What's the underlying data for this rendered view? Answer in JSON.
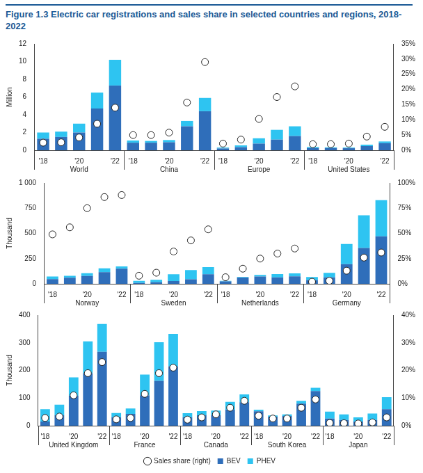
{
  "chart_data": [
    {
      "type": "bar",
      "title": "Figure 1.3  Electric car registrations and sales share in selected countries and regions, 2018-2022",
      "ylabel": "Million",
      "stacked": true,
      "grid": false,
      "groups": [
        "World",
        "China",
        "Europe",
        "United States"
      ],
      "categories": [
        "'18",
        null,
        "'20",
        null,
        "'22",
        "'18",
        null,
        "'20",
        null,
        "'22",
        "'18",
        null,
        "'20",
        null,
        "'22",
        "'18",
        null,
        "'20",
        null,
        "'22"
      ],
      "series": [
        {
          "name": "BEV",
          "color": "#2f6eba",
          "values": [
            1.3,
            1.5,
            2.0,
            4.7,
            7.3,
            0.85,
            0.85,
            0.9,
            2.7,
            4.4,
            0.2,
            0.35,
            0.75,
            1.2,
            1.6,
            0.25,
            0.25,
            0.23,
            0.47,
            0.8
          ]
        },
        {
          "name": "PHEV",
          "color": "#2ec4f1",
          "values": [
            0.7,
            0.6,
            1.0,
            1.8,
            2.9,
            0.25,
            0.2,
            0.25,
            0.6,
            1.5,
            0.1,
            0.2,
            0.6,
            1.1,
            1.1,
            0.12,
            0.08,
            0.07,
            0.16,
            0.19
          ]
        },
        {
          "name": "Sales share (right)",
          "type": "scatter",
          "axis": "y2",
          "marker": "circle",
          "color": "#ffffff",
          "values": [
            2.5,
            2.6,
            4.2,
            8.7,
            14,
            5,
            5,
            5.8,
            15.7,
            29,
            2.2,
            3.5,
            10.3,
            17.5,
            21,
            2,
            2,
            2.2,
            4.5,
            7.7
          ]
        }
      ],
      "ylim": [
        0,
        12
      ],
      "yticks": [
        0,
        2,
        4,
        6,
        8,
        10,
        12
      ],
      "y2lim": [
        0,
        35
      ],
      "y2ticks": [
        {
          "value": 0,
          "label": "0%"
        },
        {
          "value": 5,
          "label": "5%"
        },
        {
          "value": 10,
          "label": "10%"
        },
        {
          "value": 15,
          "label": "15%"
        },
        {
          "value": 20,
          "label": "20%"
        },
        {
          "value": 25,
          "label": "25%"
        },
        {
          "value": 30,
          "label": "30%"
        },
        {
          "value": 35,
          "label": "35%"
        }
      ]
    },
    {
      "type": "bar",
      "ylabel": "Thousand",
      "stacked": true,
      "grid": false,
      "groups": [
        "Norway",
        "Sweden",
        "Netherlands",
        "Germany"
      ],
      "categories": [
        "'18",
        null,
        "'20",
        null,
        "'22",
        "'18",
        null,
        "'20",
        null,
        "'22",
        "'18",
        null,
        "'20",
        null,
        "'22",
        "'18",
        null,
        "'20",
        null,
        "'22"
      ],
      "series": [
        {
          "name": "BEV",
          "color": "#2f6eba",
          "values": [
            46,
            60,
            77,
            115,
            150,
            8,
            16,
            28,
            45,
            95,
            25,
            62,
            73,
            64,
            75,
            36,
            63,
            195,
            355,
            470
          ]
        },
        {
          "name": "PHEV",
          "color": "#2ec4f1",
          "values": [
            27,
            20,
            28,
            38,
            22,
            22,
            24,
            66,
            92,
            70,
            5,
            5,
            15,
            32,
            28,
            32,
            46,
            200,
            325,
            360
          ]
        },
        {
          "name": "Sales share (right)",
          "type": "scatter",
          "axis": "y2",
          "marker": "circle",
          "color": "#ffffff",
          "values": [
            49,
            56,
            75,
            86,
            88,
            8,
            11,
            32,
            43,
            54,
            6.5,
            15,
            25,
            30,
            35,
            2,
            3,
            13,
            26,
            31
          ]
        }
      ],
      "ylim": [
        0,
        1000
      ],
      "yticks": [
        0,
        250,
        500,
        750,
        {
          "value": 1000,
          "label": "1 000"
        }
      ],
      "y2lim": [
        0,
        100
      ],
      "y2ticks": [
        {
          "value": 0,
          "label": "0%"
        },
        {
          "value": 25,
          "label": "25%"
        },
        {
          "value": 50,
          "label": "50%"
        },
        {
          "value": 75,
          "label": "75%"
        },
        {
          "value": 100,
          "label": "100%"
        }
      ]
    },
    {
      "type": "bar",
      "ylabel": "Thousand",
      "stacked": true,
      "grid": false,
      "legend": "bottom",
      "groups": [
        "United Kingdom",
        "France",
        "Canada",
        "South Korea",
        "Japan"
      ],
      "categories": [
        "'18",
        null,
        "'20",
        null,
        "'22",
        "'18",
        null,
        "'20",
        null,
        "'22",
        "'18",
        null,
        "'20",
        null,
        "'22",
        "'18",
        null,
        "'20",
        null,
        "'22",
        "'18",
        null,
        "'20",
        null,
        "'22"
      ],
      "series": [
        {
          "name": "BEV",
          "color": "#2f6eba",
          "values": [
            15,
            38,
            108,
            190,
            267,
            31,
            43,
            110,
            162,
            215,
            31,
            38,
            38,
            58,
            85,
            52,
            33,
            35,
            80,
            125,
            26,
            21,
            15,
            21,
            60
          ]
        },
        {
          "name": "PHEV",
          "color": "#2ec4f1",
          "values": [
            45,
            38,
            67,
            115,
            101,
            15,
            19,
            75,
            140,
            117,
            14,
            15,
            17,
            28,
            28,
            6,
            4,
            6,
            10,
            12,
            25,
            20,
            15,
            23,
            43
          ]
        },
        {
          "name": "Sales share (right)",
          "type": "scatter",
          "axis": "y2",
          "marker": "circle",
          "color": "#ffffff",
          "values": [
            2.8,
            3.3,
            11,
            19,
            23,
            2.3,
            2.8,
            11.5,
            19,
            21,
            2.2,
            3,
            4.1,
            6.5,
            9,
            3.6,
            2.6,
            2.6,
            6.5,
            9.5,
            1,
            0.9,
            0.8,
            1.2,
            3
          ]
        }
      ],
      "ylim": [
        0,
        400
      ],
      "yticks": [
        0,
        100,
        200,
        300,
        400
      ],
      "y2lim": [
        0,
        40
      ],
      "y2ticks": [
        {
          "value": 0,
          "label": "0%"
        },
        {
          "value": 10,
          "label": "10%"
        },
        {
          "value": 20,
          "label": "20%"
        },
        {
          "value": 30,
          "label": "30%"
        },
        {
          "value": 40,
          "label": "40%"
        }
      ]
    }
  ]
}
